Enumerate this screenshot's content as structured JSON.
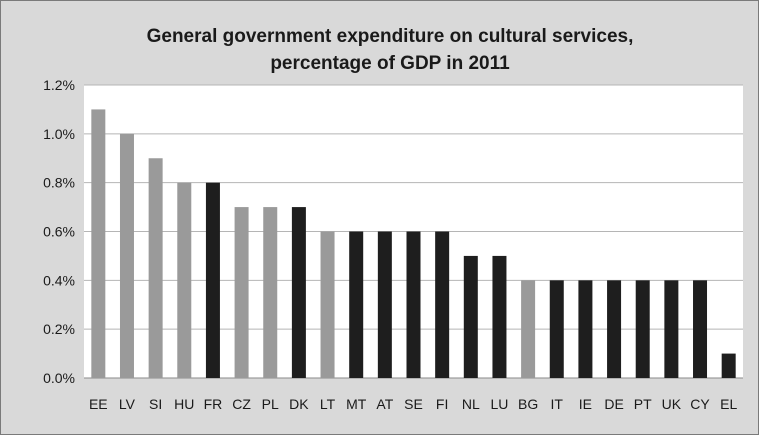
{
  "chart_data": {
    "type": "bar",
    "title_lines": [
      "General government expenditure on cultural services,",
      "percentage of GDP in 2011"
    ],
    "xlabel": "",
    "ylabel": "",
    "ylim": [
      0,
      1.2
    ],
    "yticks": [
      0,
      0.2,
      0.4,
      0.6,
      0.8,
      1.0,
      1.2
    ],
    "ytick_labels": [
      "0.0%",
      "0.2%",
      "0.4%",
      "0.6%",
      "0.8%",
      "1.0%",
      "1.2%"
    ],
    "grid": true,
    "legend": "none",
    "colors": {
      "light": "#9a9a9a",
      "dark": "#1e1e1e",
      "plot_bg": "#ffffff",
      "chart_bg": "#d9d9d9",
      "grid": "#b5b5b5"
    },
    "categories": [
      "EE",
      "LV",
      "SI",
      "HU",
      "FR",
      "CZ",
      "PL",
      "DK",
      "LT",
      "MT",
      "AT",
      "SE",
      "FI",
      "NL",
      "LU",
      "BG",
      "IT",
      "IE",
      "DE",
      "PT",
      "UK",
      "CY",
      "EL"
    ],
    "values": [
      1.1,
      1.0,
      0.9,
      0.8,
      0.8,
      0.7,
      0.7,
      0.7,
      0.6,
      0.6,
      0.6,
      0.6,
      0.6,
      0.5,
      0.5,
      0.4,
      0.4,
      0.4,
      0.4,
      0.4,
      0.4,
      0.4,
      0.1
    ],
    "bar_shades": [
      "light",
      "light",
      "light",
      "light",
      "dark",
      "light",
      "light",
      "dark",
      "light",
      "dark",
      "dark",
      "dark",
      "dark",
      "dark",
      "dark",
      "light",
      "dark",
      "dark",
      "dark",
      "dark",
      "dark",
      "dark",
      "dark"
    ]
  }
}
